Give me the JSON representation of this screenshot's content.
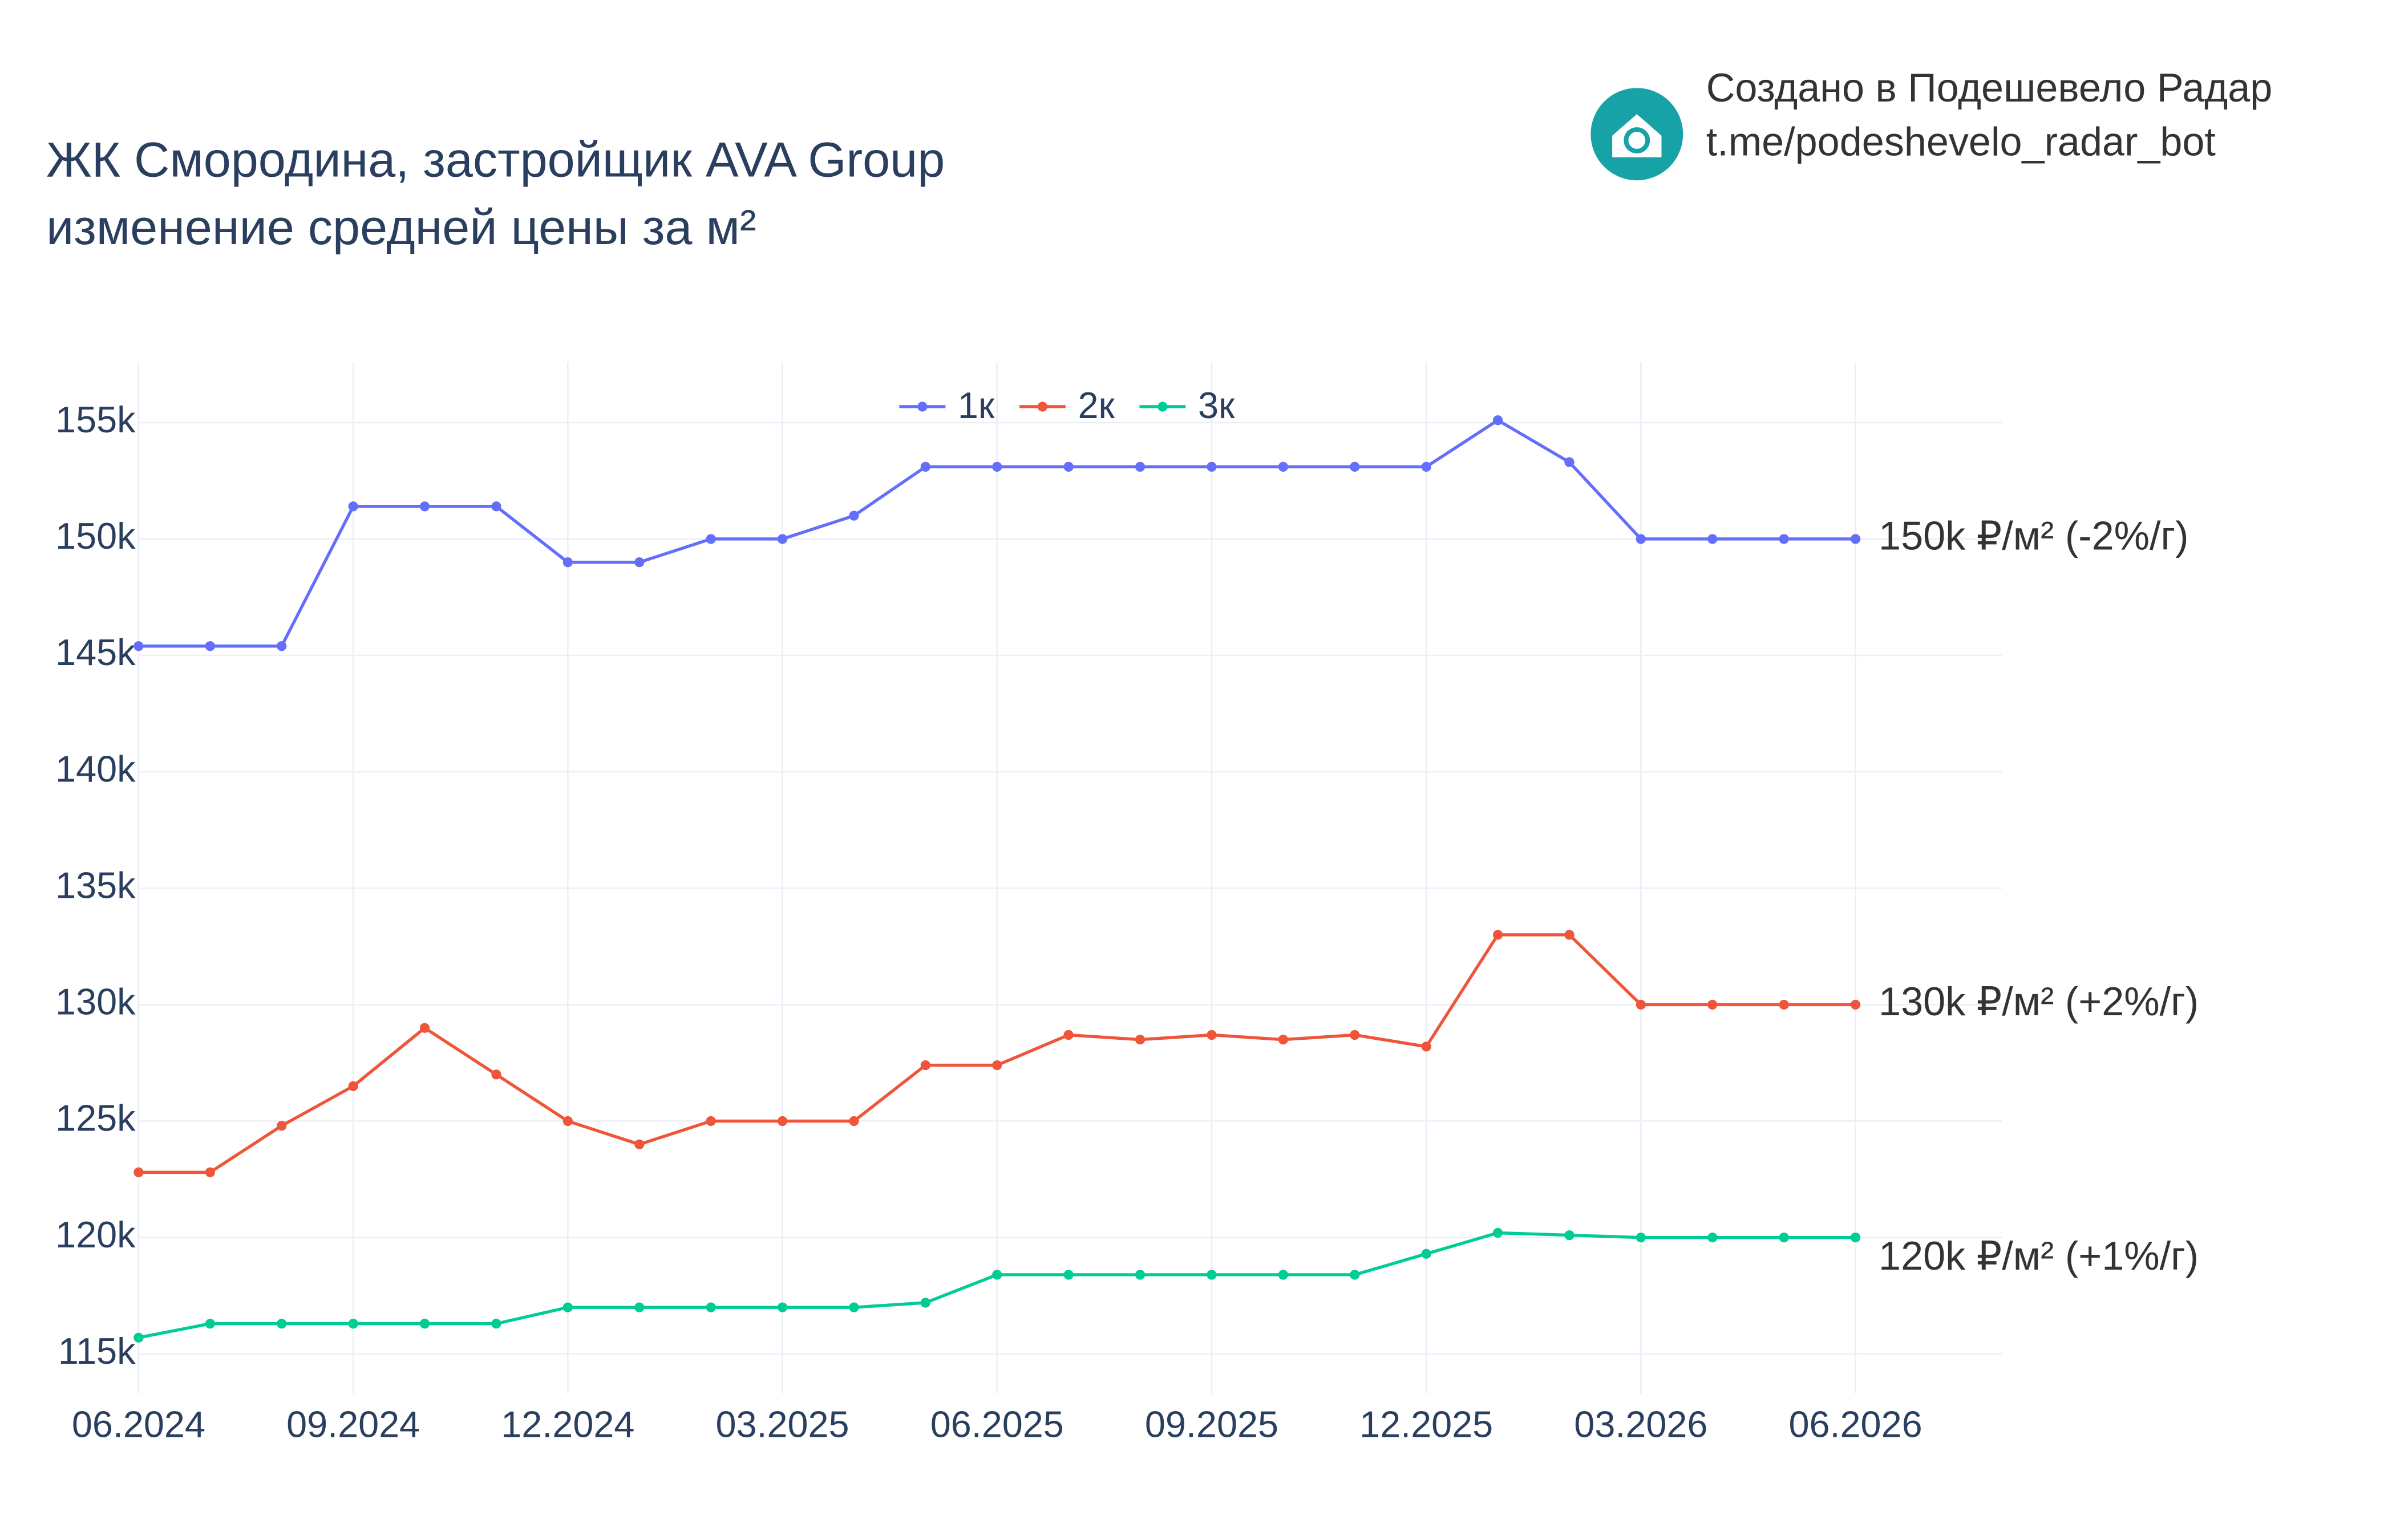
{
  "branding": {
    "line1": "Создано в Подешевело Радар",
    "line2": "t.me/podeshevelo_radar_bot"
  },
  "chart_data": {
    "type": "line",
    "title": "ЖК Смородина, застройщик AVA Group",
    "subtitle": "изменение средней цены за м²",
    "x": [
      "06.2024",
      "07.2024",
      "08.2024",
      "09.2024",
      "10.2024",
      "11.2024",
      "12.2024",
      "01.2025",
      "02.2025",
      "03.2025",
      "04.2025",
      "05.2025",
      "06.2025",
      "07.2025",
      "08.2025",
      "09.2025",
      "10.2025",
      "11.2025",
      "12.2025",
      "01.2026",
      "02.2026",
      "03.2026",
      "04.2026",
      "05.2026",
      "06.2026"
    ],
    "xticks": [
      "06.2024",
      "09.2024",
      "12.2024",
      "03.2025",
      "06.2025",
      "09.2025",
      "12.2025",
      "03.2026",
      "06.2026"
    ],
    "ylim": [
      113300,
      157600
    ],
    "yticks": [
      {
        "value": 115000,
        "label": "115k"
      },
      {
        "value": 120000,
        "label": "120k"
      },
      {
        "value": 125000,
        "label": "125k"
      },
      {
        "value": 130000,
        "label": "130k"
      },
      {
        "value": 135000,
        "label": "135k"
      },
      {
        "value": 140000,
        "label": "140k"
      },
      {
        "value": 145000,
        "label": "145k"
      },
      {
        "value": 150000,
        "label": "150k"
      },
      {
        "value": 155000,
        "label": "155k"
      }
    ],
    "grid": true,
    "legend": "top",
    "series": [
      {
        "name": "1к",
        "color": "#636efa",
        "end_label": "150k ₽/м² (-2%/г)",
        "values": [
          145400,
          145400,
          145400,
          151400,
          151400,
          151400,
          149000,
          149000,
          150000,
          150000,
          151000,
          153100,
          153100,
          153100,
          153100,
          153100,
          153100,
          153100,
          153100,
          155100,
          153300,
          150000,
          150000,
          150000,
          150000
        ]
      },
      {
        "name": "2к",
        "color": "#ef553b",
        "end_label": "130k ₽/м² (+2%/г)",
        "values": [
          122800,
          122800,
          124800,
          126500,
          129000,
          127000,
          125000,
          124000,
          125000,
          125000,
          125000,
          127400,
          127400,
          128700,
          128500,
          128700,
          128500,
          128700,
          128200,
          133000,
          133000,
          130000,
          130000,
          130000,
          130000
        ]
      },
      {
        "name": "3к",
        "color": "#00cc96",
        "end_label": "120k ₽/м² (+1%/г)",
        "values": [
          115700,
          116300,
          116300,
          116300,
          116300,
          116300,
          117000,
          117000,
          117000,
          117000,
          117000,
          117200,
          118400,
          118400,
          118400,
          118400,
          118400,
          118400,
          119300,
          120200,
          120100,
          120000,
          120000,
          120000,
          120000
        ]
      }
    ]
  }
}
